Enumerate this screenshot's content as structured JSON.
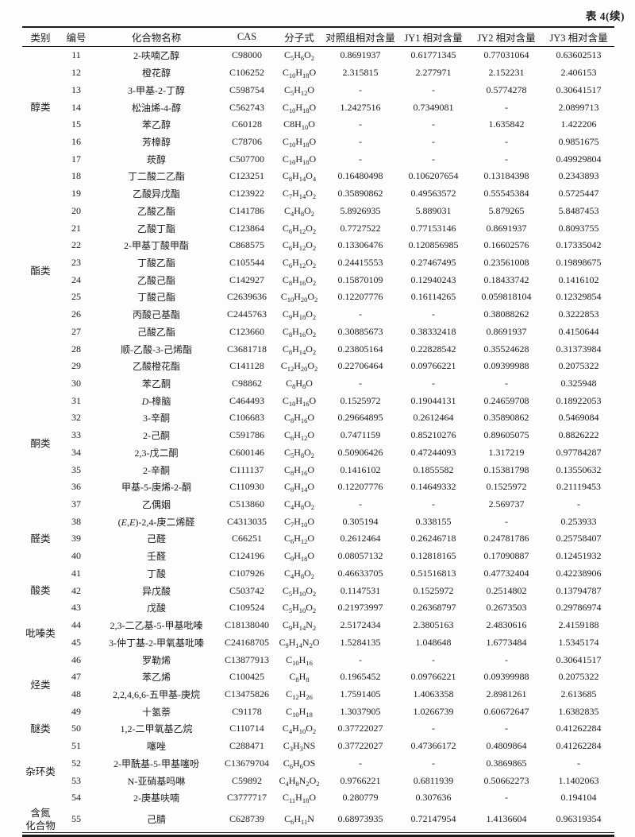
{
  "caption": "表 4(续)",
  "table": {
    "columns": [
      "类别",
      "编号",
      "化合物名称",
      "CAS",
      "分子式",
      "对照组相对含量",
      "JY1 相对含量",
      "JY2 相对含量",
      "JY3 相对含量"
    ],
    "categories": [
      {
        "label": "醇类",
        "start": "11",
        "span": 7
      },
      {
        "label": "酯类",
        "start": "18",
        "span": 12
      },
      {
        "label": "酮类",
        "start": "30",
        "span": 8
      },
      {
        "label": "醛类",
        "start": "38",
        "span": 3
      },
      {
        "label": "酸类",
        "start": "41",
        "span": 3
      },
      {
        "label": "吡嗪类",
        "start": "44",
        "span": 2
      },
      {
        "label": "烃类",
        "start": "46",
        "span": 4
      },
      {
        "label": "醚类",
        "start": "50",
        "span": 1
      },
      {
        "label": "杂环类",
        "start": "51",
        "span": 4
      },
      {
        "label": "含氮\n化合物",
        "start": "55",
        "span": 1
      }
    ],
    "rows": [
      {
        "no": "11",
        "name": "2-呋喃乙醇",
        "cas": "C98000",
        "formula": "C~5~H~6~O~2~",
        "values": [
          "0.8691937",
          "0.61771345",
          "0.77031064",
          "0.63602513"
        ]
      },
      {
        "no": "12",
        "name": "橙花醇",
        "cas": "C106252",
        "formula": "C~10~H~18~O",
        "values": [
          "2.315815",
          "2.277971",
          "2.152231",
          "2.406153"
        ]
      },
      {
        "no": "13",
        "name": "3-甲基-2-丁醇",
        "cas": "C598754",
        "formula": "C~5~H~12~O",
        "values": [
          "-",
          "-",
          "0.5774278",
          "0.30641517"
        ]
      },
      {
        "no": "14",
        "name": "松油烯-4-醇",
        "cas": "C562743",
        "formula": "C~10~H~18~O",
        "values": [
          "1.2427516",
          "0.7349081",
          "-",
          "2.0899713"
        ]
      },
      {
        "no": "15",
        "name": "苯乙醇",
        "cas": "C60128",
        "formula": "C8H~10~O",
        "values": [
          "-",
          "-",
          "1.635842",
          "1.422206"
        ]
      },
      {
        "no": "16",
        "name": "芳樟醇",
        "cas": "C78706",
        "formula": "C~10~H~18~O",
        "values": [
          "-",
          "-",
          "-",
          "0.9851675"
        ]
      },
      {
        "no": "17",
        "name": "莰醇",
        "cas": "C507700",
        "formula": "C~10~H~18~O",
        "values": [
          "-",
          "-",
          "-",
          "0.49929804"
        ]
      },
      {
        "no": "18",
        "name": "丁二酸二乙酯",
        "cas": "C123251",
        "formula": "C~8~H~14~O~4~",
        "values": [
          "0.16480498",
          "0.106207654",
          "0.13184398",
          "0.2343893"
        ]
      },
      {
        "no": "19",
        "name": "乙酸异戊酯",
        "cas": "C123922",
        "formula": "C~7~H~14~O~2~",
        "values": [
          "0.35890862",
          "0.49563572",
          "0.55545384",
          "0.5725447"
        ]
      },
      {
        "no": "20",
        "name": "乙酸乙酯",
        "cas": "C141786",
        "formula": "C~4~H~8~O~2~",
        "values": [
          "5.8926935",
          "5.889031",
          "5.879265",
          "5.8487453"
        ]
      },
      {
        "no": "21",
        "name": "乙酸丁酯",
        "cas": "C123864",
        "formula": "C~6~H~12~O~2~",
        "values": [
          "0.7727522",
          "0.77153146",
          "0.8691937",
          "0.8093755"
        ]
      },
      {
        "no": "22",
        "name": "2-甲基丁酸甲酯",
        "cas": "C868575",
        "formula": "C~6~H~12~O~2~",
        "values": [
          "0.13306476",
          "0.120856985",
          "0.16602576",
          "0.17335042"
        ]
      },
      {
        "no": "23",
        "name": "丁酸乙酯",
        "cas": "C105544",
        "formula": "C~6~H~12~O~2~",
        "values": [
          "0.24415553",
          "0.27467495",
          "0.23561008",
          "0.19898675"
        ]
      },
      {
        "no": "24",
        "name": "乙酸己酯",
        "cas": "C142927",
        "formula": "C~8~H~16~O~2~",
        "values": [
          "0.15870109",
          "0.12940243",
          "0.18433742",
          "0.1416102"
        ]
      },
      {
        "no": "25",
        "name": "丁酸己酯",
        "cas": "C2639636",
        "formula": "C~10~H~20~O~2~",
        "values": [
          "0.12207776",
          "0.16114265",
          "0.059818104",
          "0.12329854"
        ]
      },
      {
        "no": "26",
        "name": "丙酸己基酯",
        "cas": "C2445763",
        "formula": "C~9~H~18~O~2~",
        "values": [
          "-",
          "-",
          "0.38088262",
          "0.3222853"
        ]
      },
      {
        "no": "27",
        "name": "己酸乙酯",
        "cas": "C123660",
        "formula": "C~8~H~16~O~2~",
        "values": [
          "0.30885673",
          "0.38332418",
          "0.8691937",
          "0.4150644"
        ]
      },
      {
        "no": "28",
        "name": "顺-乙酸-3-己烯酯",
        "cas": "C3681718",
        "formula": "C~8~H~14~O~2~",
        "values": [
          "0.23805164",
          "0.22828542",
          "0.35524628",
          "0.31373984"
        ]
      },
      {
        "no": "29",
        "name": "乙酸橙花酯",
        "cas": "C141128",
        "formula": "C~12~H~20~O~2~",
        "values": [
          "0.22706464",
          "0.09766221",
          "0.09399988",
          "0.2075322"
        ]
      },
      {
        "no": "30",
        "name": "苯乙酮",
        "cas": "C98862",
        "formula": "C~8~H~8~O",
        "values": [
          "-",
          "-",
          "-",
          "0.325948"
        ]
      },
      {
        "no": "31",
        "name": "*D*-樟脑",
        "cas": "C464493",
        "formula": "C~10~H~16~O",
        "values": [
          "0.1525972",
          "0.19044131",
          "0.24659708",
          "0.18922053"
        ]
      },
      {
        "no": "32",
        "name": "3-辛酮",
        "cas": "C106683",
        "formula": "C~8~H~16~O",
        "values": [
          "0.29664895",
          "0.2612464",
          "0.35890862",
          "0.5469084"
        ]
      },
      {
        "no": "33",
        "name": "2-己酮",
        "cas": "C591786",
        "formula": "C~6~H~12~O",
        "values": [
          "0.7471159",
          "0.85210276",
          "0.89605075",
          "0.8826222"
        ]
      },
      {
        "no": "34",
        "name": "2,3-戊二酮",
        "cas": "C600146",
        "formula": "C~5~H~8~O~2~",
        "values": [
          "0.50906426",
          "0.47244093",
          "1.317219",
          "0.97784287"
        ]
      },
      {
        "no": "35",
        "name": "2-辛酮",
        "cas": "C111137",
        "formula": "C~8~H~16~O",
        "values": [
          "0.1416102",
          "0.1855582",
          "0.15381798",
          "0.13550632"
        ]
      },
      {
        "no": "36",
        "name": "甲基-5-庚烯-2-酮",
        "cas": "C110930",
        "formula": "C~8~H~14~O",
        "values": [
          "0.12207776",
          "0.14649332",
          "0.1525972",
          "0.21119453"
        ]
      },
      {
        "no": "37",
        "name": "乙偶姻",
        "cas": "C513860",
        "formula": "C~4~H~8~O~2~",
        "values": [
          "-",
          "-",
          "2.569737",
          "-"
        ]
      },
      {
        "no": "38",
        "name": "(*E*,*E*)-2,4-庚二烯醛",
        "cas": "C4313035",
        "formula": "C~7~H~10~O",
        "values": [
          "0.305194",
          "0.338155",
          "-",
          "0.253933"
        ]
      },
      {
        "no": "39",
        "name": "己醛",
        "cas": "C66251",
        "formula": "C~6~H~12~O",
        "values": [
          "0.2612464",
          "0.26246718",
          "0.24781786",
          "0.25758407"
        ]
      },
      {
        "no": "40",
        "name": "壬醛",
        "cas": "C124196",
        "formula": "C~9~H~18~O",
        "values": [
          "0.08057132",
          "0.12818165",
          "0.17090887",
          "0.12451932"
        ]
      },
      {
        "no": "41",
        "name": "丁酸",
        "cas": "C107926",
        "formula": "C~4~H~8~O~2~",
        "values": [
          "0.46633705",
          "0.51516813",
          "0.47732404",
          "0.42238906"
        ]
      },
      {
        "no": "42",
        "name": "异戊酸",
        "cas": "C503742",
        "formula": "C~5~H~10~O~2~",
        "values": [
          "0.1147531",
          "0.1525972",
          "0.2514802",
          "0.13794787"
        ]
      },
      {
        "no": "43",
        "name": "戊酸",
        "cas": "C109524",
        "formula": "C~5~H~10~O~2~",
        "values": [
          "0.21973997",
          "0.26368797",
          "0.2673503",
          "0.29786974"
        ]
      },
      {
        "no": "44",
        "name": "2,3-二乙基-5-甲基吡嗪",
        "cas": "C18138040",
        "formula": "C~9~H~14~N~2~",
        "values": [
          "2.5172434",
          "2.3805163",
          "2.4830616",
          "2.4159188"
        ]
      },
      {
        "no": "45",
        "name": "3-仲丁基-2-甲氧基吡嗪",
        "cas": "C24168705",
        "formula": "C~9~H~14~N~2~O",
        "values": [
          "1.5284135",
          "1.048648",
          "1.6773484",
          "1.5345174"
        ]
      },
      {
        "no": "46",
        "name": "罗勒烯",
        "cas": "C13877913",
        "formula": "C~10~H~16~",
        "values": [
          "-",
          "-",
          "-",
          "0.30641517"
        ]
      },
      {
        "no": "47",
        "name": "苯乙烯",
        "cas": "C100425",
        "formula": "C~8~H~8~",
        "values": [
          "0.1965452",
          "0.09766221",
          "0.09399988",
          "0.2075322"
        ]
      },
      {
        "no": "48",
        "name": "2,2,4,6,6-五甲基-庚烷",
        "cas": "C13475826",
        "formula": "C~12~H~26~",
        "values": [
          "1.7591405",
          "1.4063358",
          "2.8981261",
          "2.613685"
        ]
      },
      {
        "no": "49",
        "name": "十氢萘",
        "cas": "C91178",
        "formula": "C~10~H~18~",
        "values": [
          "1.3037905",
          "1.0266739",
          "0.60672647",
          "1.6382835"
        ]
      },
      {
        "no": "50",
        "name": "1,2-二甲氧基乙烷",
        "cas": "C110714",
        "formula": "C~4~H~10~O~2~",
        "values": [
          "0.37722027",
          "-",
          "-",
          "0.41262284"
        ]
      },
      {
        "no": "51",
        "name": "噻唑",
        "cas": "C288471",
        "formula": "C~3~H~3~NS",
        "values": [
          "0.37722027",
          "0.47366172",
          "0.4809864",
          "0.41262284"
        ]
      },
      {
        "no": "52",
        "name": "2-甲酰基-5-甲基噻吩",
        "cas": "C13679704",
        "formula": "C~6~H~6~OS",
        "values": [
          "-",
          "-",
          "0.3869865",
          "-"
        ]
      },
      {
        "no": "53",
        "name": "N-亚硝基吗啉",
        "cas": "C59892",
        "formula": "C~4~H~8~N~2~O~2~",
        "values": [
          "0.9766221",
          "0.6811939",
          "0.50662273",
          "1.1402063"
        ]
      },
      {
        "no": "54",
        "name": "2-庚基呋喃",
        "cas": "C3777717",
        "formula": "C~11~H~18~O",
        "values": [
          "0.280779",
          "0.307636",
          "-",
          "0.194104"
        ]
      },
      {
        "no": "55",
        "name": "己腈",
        "cas": "C628739",
        "formula": "C~6~H~11~N",
        "values": [
          "0.68973935",
          "0.72147954",
          "1.4136604",
          "0.96319354"
        ]
      }
    ]
  }
}
